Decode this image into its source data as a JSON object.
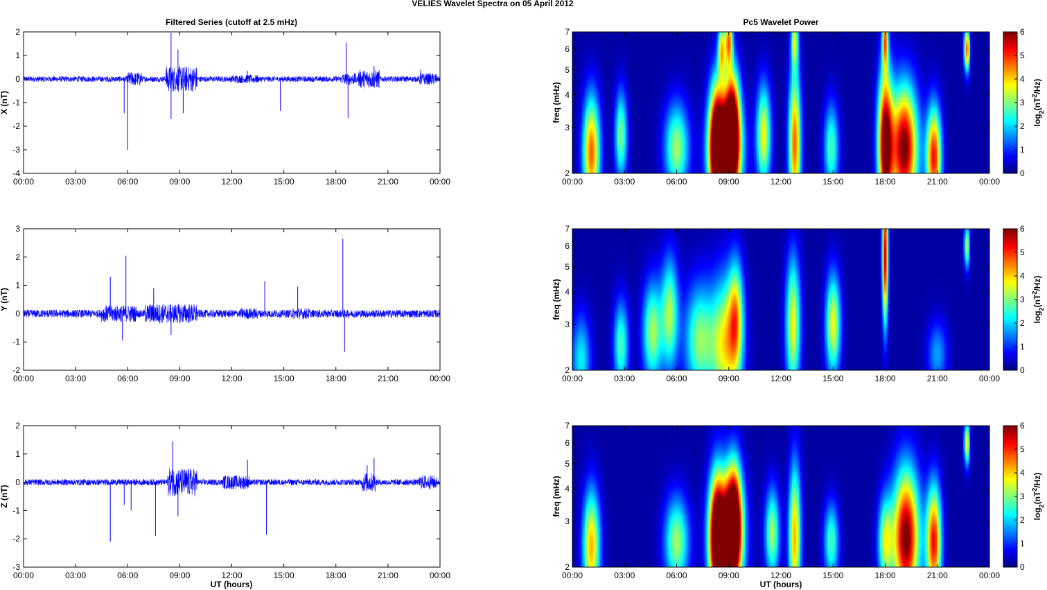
{
  "figure_title": "VELIES Wavelet Spectra on 05 April      2012",
  "left_title": "Filtered Series (cutoff at 2.5 mHz)",
  "right_title": "Pc5 Wavelet Power",
  "x_label": "UT (hours)",
  "x_ticks": [
    "00:00",
    "03:00",
    "06:00",
    "09:00",
    "12:00",
    "15:00",
    "18:00",
    "21:00",
    "00:00"
  ],
  "freq_label": "freq (mHz)",
  "freq_ticks": [
    "2",
    "3",
    "4",
    "5",
    "6",
    "7"
  ],
  "colorbar_label": "log2(nT2/Hz)",
  "colorbar_ticks": [
    "0",
    "1",
    "2",
    "3",
    "4",
    "5",
    "6"
  ],
  "colors": {
    "trace": "#0000ff",
    "colormap": "jet"
  },
  "chart_data": [
    {
      "type": "line",
      "component": "X",
      "ylabel": "X (nT)",
      "xlim": [
        0,
        24
      ],
      "ylim": [
        -4,
        2
      ],
      "yticks": [
        "2",
        "1",
        "0",
        "-1",
        "-2",
        "-3",
        "-4"
      ],
      "noise_amplitude": 0.12,
      "bursts": [
        [
          6.0,
          6.8,
          0.3
        ],
        [
          8.2,
          10.0,
          0.55
        ],
        [
          12.0,
          13.5,
          0.18
        ],
        [
          18.3,
          19.2,
          0.25
        ],
        [
          19.3,
          20.5,
          0.4
        ],
        [
          22.8,
          23.8,
          0.25
        ]
      ],
      "spikes": [
        [
          5.8,
          -1.45
        ],
        [
          6.0,
          -3.0
        ],
        [
          8.5,
          1.95
        ],
        [
          8.5,
          -1.7
        ],
        [
          8.9,
          1.25
        ],
        [
          9.2,
          -1.45
        ],
        [
          12.9,
          0.35
        ],
        [
          14.8,
          -1.35
        ],
        [
          18.6,
          1.55
        ],
        [
          18.7,
          -1.65
        ],
        [
          20.2,
          0.55
        ],
        [
          22.9,
          0.4
        ]
      ]
    },
    {
      "type": "line",
      "component": "Y",
      "ylabel": "Y (nT)",
      "xlim": [
        0,
        24
      ],
      "ylim": [
        -2,
        3
      ],
      "yticks": [
        "3",
        "2",
        "1",
        "0",
        "-1",
        "-2"
      ],
      "noise_amplitude": 0.14,
      "bursts": [
        [
          4.5,
          6.5,
          0.3
        ],
        [
          7.0,
          10.0,
          0.35
        ],
        [
          12.5,
          13.5,
          0.2
        ],
        [
          15.5,
          16.5,
          0.2
        ]
      ],
      "spikes": [
        [
          5.0,
          1.3
        ],
        [
          5.7,
          -0.95
        ],
        [
          5.9,
          2.05
        ],
        [
          7.5,
          0.9
        ],
        [
          8.5,
          -0.75
        ],
        [
          13.9,
          1.15
        ],
        [
          15.8,
          0.95
        ],
        [
          18.4,
          2.65
        ],
        [
          18.5,
          -1.35
        ]
      ]
    },
    {
      "type": "line",
      "component": "Z",
      "ylabel": "Z (nT)",
      "xlim": [
        0,
        24
      ],
      "ylim": [
        -3,
        2
      ],
      "yticks": [
        "2",
        "1",
        "0",
        "-1",
        "-2",
        "-3"
      ],
      "noise_amplitude": 0.11,
      "bursts": [
        [
          8.3,
          10.0,
          0.5
        ],
        [
          11.5,
          13.0,
          0.25
        ],
        [
          19.5,
          20.3,
          0.35
        ],
        [
          22.8,
          23.8,
          0.25
        ]
      ],
      "spikes": [
        [
          5.0,
          -2.1
        ],
        [
          5.8,
          -0.8
        ],
        [
          6.2,
          -1.0
        ],
        [
          7.6,
          -1.9
        ],
        [
          8.6,
          1.45
        ],
        [
          8.9,
          -1.2
        ],
        [
          12.9,
          0.8
        ],
        [
          14.0,
          -1.85
        ],
        [
          19.8,
          0.6
        ],
        [
          20.2,
          0.85
        ]
      ]
    },
    {
      "type": "heatmap",
      "component": "X",
      "xlim": [
        0,
        24
      ],
      "ylim": [
        2,
        7
      ],
      "yscale": "log",
      "clim": [
        0,
        6
      ],
      "colormap": "jet",
      "base_level": 0.2,
      "features": [
        [
          1.1,
          2.4,
          0.35,
          1.0,
          4.5
        ],
        [
          2.8,
          2.8,
          0.25,
          0.8,
          2.8
        ],
        [
          6.0,
          2.5,
          0.5,
          0.8,
          3.0
        ],
        [
          8.3,
          2.6,
          0.3,
          1.1,
          5.0
        ],
        [
          8.8,
          2.4,
          0.6,
          1.0,
          6.0
        ],
        [
          9.2,
          3.0,
          0.3,
          1.0,
          5.5
        ],
        [
          8.6,
          6.0,
          0.15,
          0.5,
          3.5
        ],
        [
          9.0,
          6.5,
          0.15,
          0.5,
          4.0
        ],
        [
          11.0,
          2.8,
          0.3,
          0.9,
          3.5
        ],
        [
          12.8,
          2.6,
          0.25,
          1.3,
          4.5
        ],
        [
          12.8,
          6.5,
          0.15,
          0.5,
          3.0
        ],
        [
          14.9,
          2.5,
          0.3,
          0.8,
          2.5
        ],
        [
          18.0,
          2.6,
          0.3,
          1.3,
          6.0
        ],
        [
          18.0,
          6.5,
          0.12,
          0.5,
          4.0
        ],
        [
          19.1,
          2.5,
          0.55,
          1.1,
          6.0
        ],
        [
          20.8,
          2.3,
          0.3,
          0.9,
          5.0
        ],
        [
          22.7,
          6.0,
          0.12,
          0.4,
          4.5
        ]
      ]
    },
    {
      "type": "heatmap",
      "component": "Y",
      "xlim": [
        0,
        24
      ],
      "ylim": [
        2,
        7
      ],
      "yscale": "log",
      "clim": [
        0,
        6
      ],
      "colormap": "jet",
      "base_level": 0.2,
      "features": [
        [
          0.5,
          2.2,
          0.4,
          0.8,
          2.0
        ],
        [
          2.8,
          2.5,
          0.3,
          0.8,
          2.5
        ],
        [
          4.6,
          2.8,
          0.4,
          0.9,
          3.0
        ],
        [
          5.6,
          3.3,
          0.35,
          1.0,
          3.0
        ],
        [
          7.3,
          2.6,
          0.6,
          1.0,
          2.8
        ],
        [
          8.8,
          2.5,
          0.6,
          1.2,
          3.5
        ],
        [
          9.4,
          3.2,
          0.3,
          1.0,
          3.0
        ],
        [
          12.7,
          3.0,
          0.3,
          1.2,
          3.5
        ],
        [
          15.0,
          3.0,
          0.3,
          0.9,
          3.5
        ],
        [
          18.0,
          5.5,
          0.12,
          1.2,
          5.5
        ],
        [
          21.0,
          2.3,
          0.4,
          0.6,
          1.5
        ],
        [
          22.7,
          6.0,
          0.12,
          0.4,
          3.0
        ]
      ]
    },
    {
      "type": "heatmap",
      "component": "Z",
      "xlim": [
        0,
        24
      ],
      "ylim": [
        2,
        7
      ],
      "yscale": "log",
      "clim": [
        0,
        6
      ],
      "colormap": "jet",
      "base_level": 0.2,
      "features": [
        [
          1.1,
          2.4,
          0.35,
          1.0,
          4.0
        ],
        [
          6.0,
          2.5,
          0.5,
          0.8,
          3.0
        ],
        [
          8.3,
          2.6,
          0.3,
          1.1,
          5.0
        ],
        [
          8.9,
          2.6,
          0.6,
          1.1,
          6.0
        ],
        [
          9.3,
          3.0,
          0.3,
          1.0,
          5.0
        ],
        [
          11.5,
          2.7,
          0.3,
          0.8,
          3.0
        ],
        [
          12.8,
          2.6,
          0.25,
          1.3,
          4.0
        ],
        [
          14.9,
          2.5,
          0.3,
          0.7,
          2.5
        ],
        [
          18.0,
          2.5,
          0.3,
          0.8,
          3.0
        ],
        [
          19.2,
          2.6,
          0.55,
          1.2,
          6.0
        ],
        [
          20.8,
          2.5,
          0.3,
          1.0,
          5.0
        ],
        [
          22.7,
          6.0,
          0.12,
          0.4,
          3.5
        ]
      ]
    }
  ]
}
